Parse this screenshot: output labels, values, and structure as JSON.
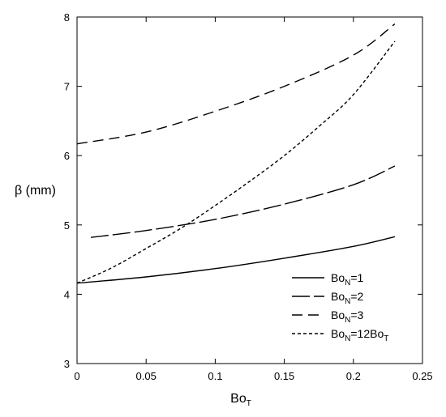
{
  "chart_data": {
    "type": "line",
    "title": "",
    "xlabel": "Bo",
    "xlabel_sub": "T",
    "ylabel": "β (mm)",
    "xlim": [
      0,
      0.25
    ],
    "ylim": [
      3,
      8
    ],
    "xticks": [
      "0",
      "0.05",
      "0.1",
      "0.15",
      "0.2",
      "0.25"
    ],
    "yticks": [
      "3",
      "4",
      "5",
      "6",
      "7",
      "8"
    ],
    "grid": false,
    "legend_position": "bottom-right",
    "series": [
      {
        "name": "Bo_N=1",
        "label_parts": [
          "Bo",
          "N",
          "=1",
          ""
        ],
        "dash": "solid",
        "x": [
          0,
          0.05,
          0.1,
          0.15,
          0.2,
          0.23
        ],
        "y": [
          4.16,
          4.25,
          4.37,
          4.52,
          4.69,
          4.83
        ]
      },
      {
        "name": "Bo_N=2",
        "label_parts": [
          "Bo",
          "N",
          "=2",
          ""
        ],
        "dash": "longdash",
        "x": [
          0.01,
          0.05,
          0.1,
          0.15,
          0.2,
          0.23
        ],
        "y": [
          4.82,
          4.92,
          5.08,
          5.3,
          5.58,
          5.85
        ]
      },
      {
        "name": "Bo_N=3",
        "label_parts": [
          "Bo",
          "N",
          "=3",
          ""
        ],
        "dash": "dash",
        "x": [
          0,
          0.05,
          0.1,
          0.15,
          0.2,
          0.23
        ],
        "y": [
          6.17,
          6.34,
          6.64,
          7.0,
          7.45,
          7.9
        ]
      },
      {
        "name": "Bo_N=12Bo_T",
        "label_parts": [
          "Bo",
          "N",
          "=12Bo",
          "T"
        ],
        "dash": "shortdash",
        "x": [
          0,
          0.025,
          0.05,
          0.075,
          0.1,
          0.125,
          0.15,
          0.175,
          0.2,
          0.23
        ],
        "y": [
          4.16,
          4.38,
          4.66,
          4.95,
          5.28,
          5.63,
          6.0,
          6.42,
          6.88,
          7.65
        ]
      }
    ]
  }
}
